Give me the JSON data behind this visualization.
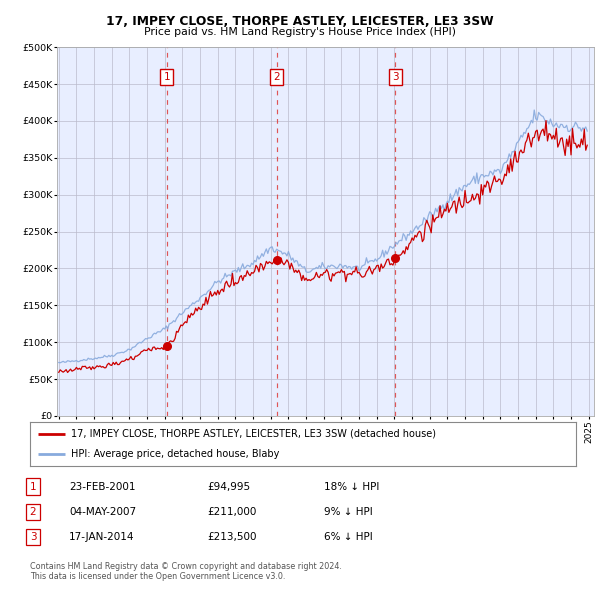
{
  "title": "17, IMPEY CLOSE, THORPE ASTLEY, LEICESTER, LE3 3SW",
  "subtitle": "Price paid vs. HM Land Registry's House Price Index (HPI)",
  "legend_line1": "17, IMPEY CLOSE, THORPE ASTLEY, LEICESTER, LE3 3SW (detached house)",
  "legend_line2": "HPI: Average price, detached house, Blaby",
  "footnote1": "Contains HM Land Registry data © Crown copyright and database right 2024.",
  "footnote2": "This data is licensed under the Open Government Licence v3.0.",
  "sale_points": [
    {
      "label": "1",
      "date": "23-FEB-2001",
      "price": 94995,
      "note": "18% ↓ HPI",
      "x_year": 2001.12
    },
    {
      "label": "2",
      "date": "04-MAY-2007",
      "price": 211000,
      "note": "9% ↓ HPI",
      "x_year": 2007.33
    },
    {
      "label": "3",
      "date": "17-JAN-2014",
      "price": 213500,
      "note": "6% ↓ HPI",
      "x_year": 2014.04
    }
  ],
  "bg_color": "#e8eeff",
  "grid_color": "#bbbbcc",
  "red_line_color": "#cc0000",
  "blue_line_color": "#88aadd",
  "sale_box_color": "#cc0000",
  "dashed_color": "#dd4444",
  "ylim": [
    0,
    500000
  ],
  "xlim": [
    1994.9,
    2025.3
  ],
  "yticks": [
    0,
    50000,
    100000,
    150000,
    200000,
    250000,
    300000,
    350000,
    400000,
    450000,
    500000
  ],
  "xticks": [
    1995,
    1996,
    1997,
    1998,
    1999,
    2000,
    2001,
    2002,
    2003,
    2004,
    2005,
    2006,
    2007,
    2008,
    2009,
    2010,
    2011,
    2012,
    2013,
    2014,
    2015,
    2016,
    2017,
    2018,
    2019,
    2020,
    2021,
    2022,
    2023,
    2024,
    2025
  ]
}
